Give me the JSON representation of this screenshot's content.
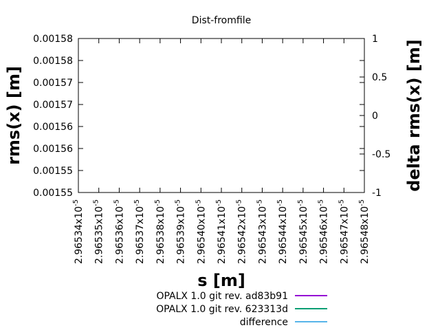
{
  "chart_data": {
    "type": "line",
    "title": "Dist-fromfile",
    "xlabel": "s [m]",
    "ylabel": "rms(x) [m]",
    "y2label": "delta rms(x) [m]",
    "yticks": [
      "0.00155",
      "0.00155",
      "0.00156",
      "0.00156",
      "0.00157",
      "0.00157",
      "0.00158",
      "0.00158"
    ],
    "y2ticks": [
      "-1",
      "-0.5",
      "0",
      "0.5",
      "1"
    ],
    "y2lim": [
      -1,
      1
    ],
    "xticks": [
      "2.96534",
      "2.96535",
      "2.96536",
      "2.96537",
      "2.96538",
      "2.96539",
      "2.96540",
      "2.96541",
      "2.96542",
      "2.96543",
      "2.96544",
      "2.96545",
      "2.96546",
      "2.96547",
      "2.96548"
    ],
    "xtick_multiplier": "x10",
    "xtick_exponent": "-5",
    "grid": false,
    "legend_position": "bottom",
    "series": [
      {
        "name": "OPALX 1.0 git rev. ad83b91",
        "color": "#9400d3",
        "x": [],
        "y": []
      },
      {
        "name": "OPALX 1.0 git rev. 623313d",
        "color": "#009e73",
        "x": [],
        "y": []
      },
      {
        "name": "difference",
        "color": "#56b4e9",
        "x": [],
        "y": []
      }
    ]
  }
}
